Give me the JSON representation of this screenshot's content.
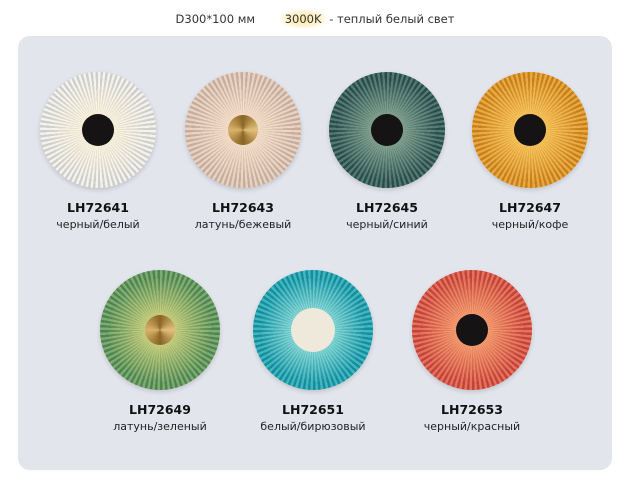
{
  "header": {
    "size": "D300*100 мм",
    "temperature": "3000K",
    "light_desc": "- теплый белый свет"
  },
  "lamps": [
    {
      "code": "LH72641",
      "color": "черный/белый",
      "shade": "#f1f0ec",
      "glow": "#fff3d6",
      "core": "#151313"
    },
    {
      "code": "LH72643",
      "color": "латунь/бежевый",
      "shade": "#e5c8b5",
      "glow": "#fbe6cf",
      "core": "#b98b3c"
    },
    {
      "code": "LH72645",
      "color": "черный/синий",
      "shade": "#2e5a55",
      "glow": "#9bb8a2",
      "core": "#151313"
    },
    {
      "code": "LH72647",
      "color": "черный/кофе",
      "shade": "#e6951c",
      "glow": "#ffd36a",
      "core": "#151313"
    },
    {
      "code": "LH72649",
      "color": "латунь/зеленый",
      "shade": "#5e9a58",
      "glow": "#e8df86",
      "core": "#b98b3c"
    },
    {
      "code": "LH72651",
      "color": "белый/бирюзовый",
      "shade": "#18a5b4",
      "glow": "#b9f2e8",
      "core": "#efe9dc"
    },
    {
      "code": "LH72653",
      "color": "черный/красный",
      "shade": "#e0503e",
      "glow": "#ffb27a",
      "core": "#151313"
    }
  ]
}
